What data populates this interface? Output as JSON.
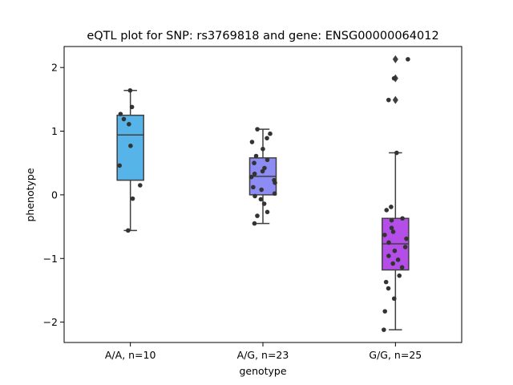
{
  "chart_data": {
    "type": "box",
    "title": "eQTL plot for SNP: rs3769818 and gene: ENSG00000064012",
    "xlabel": "genotype",
    "ylabel": "phenotype",
    "ylim": [
      -2.32,
      2.33
    ],
    "yticks": [
      {
        "value": 2,
        "label": "2"
      },
      {
        "value": 1,
        "label": "1"
      },
      {
        "value": 0,
        "label": "0"
      },
      {
        "value": -1,
        "label": "−1"
      },
      {
        "value": -2,
        "label": "−2"
      }
    ],
    "grid": false,
    "categories": [
      "A/A, n=10",
      "A/G, n=23",
      "G/G, n=25"
    ],
    "boxes": [
      {
        "category": "A/A, n=10",
        "color": "#56b4e9",
        "q1": 0.23,
        "median": 0.94,
        "q3": 1.25,
        "whisker_low": -0.56,
        "whisker_high": 1.64,
        "outliers": [],
        "points": [
          1.64,
          1.38,
          1.27,
          1.19,
          1.11,
          0.77,
          0.46,
          0.15,
          -0.06,
          -0.56
        ]
      },
      {
        "category": "A/G, n=23",
        "color": "#8c8cf4",
        "q1": 0.0,
        "median": 0.29,
        "q3": 0.58,
        "whisker_low": -0.45,
        "whisker_high": 1.03,
        "outliers": [],
        "points": [
          1.03,
          0.96,
          0.89,
          0.83,
          0.72,
          0.61,
          0.55,
          0.5,
          0.42,
          0.37,
          0.33,
          0.28,
          0.23,
          0.19,
          0.12,
          0.08,
          0.02,
          -0.02,
          -0.07,
          -0.14,
          -0.27,
          -0.33,
          -0.45
        ]
      },
      {
        "category": "G/G, n=25",
        "color": "#b54ee8",
        "q1": -1.18,
        "median": -0.77,
        "q3": -0.37,
        "whisker_low": -2.12,
        "whisker_high": 0.66,
        "outliers": [
          2.13,
          1.83,
          1.49
        ],
        "points": [
          2.13,
          1.83,
          1.49,
          0.66,
          -0.19,
          -0.24,
          -0.37,
          -0.4,
          -0.52,
          -0.63,
          -0.69,
          -0.75,
          -0.82,
          -0.88,
          -0.96,
          -1.02,
          -1.08,
          -1.14,
          -1.27,
          -1.37,
          -1.47,
          -1.63,
          -1.83,
          -2.12,
          -0.58
        ]
      }
    ]
  }
}
